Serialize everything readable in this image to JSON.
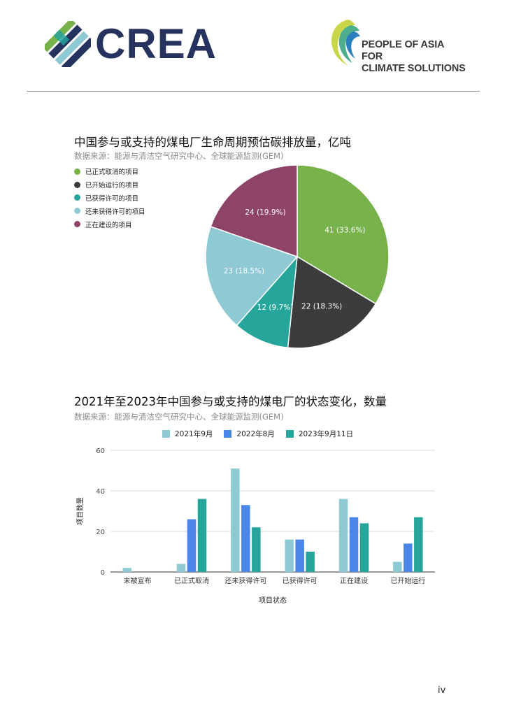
{
  "header": {
    "crea_name": "CREA",
    "paca_line1": "PEOPLE OF ASIA FOR",
    "paca_line2": "CLIMATE SOLUTIONS"
  },
  "colors": {
    "green": "#77b24a",
    "dark": "#3c3c3c",
    "teal": "#26a59a",
    "light_blue": "#8fc9d3",
    "plum": "#8e4468",
    "blue": "#4a86e8",
    "navy": "#26335f"
  },
  "chart_data": [
    {
      "type": "pie",
      "title": "中国参与或支持的煤电厂生命周期预估碳排放量，亿吨",
      "subtitle": "数据来源：能源与清洁空气研究中心、全球能源监测(GEM)",
      "legend_position": "top-left",
      "slices": [
        {
          "label": "已正式取消的项目",
          "value": 41,
          "percent": "33.6%",
          "data_label": "41 (33.6%)",
          "color": "#77b24a"
        },
        {
          "label": "已开始运行的项目",
          "value": 22,
          "percent": "18.3%",
          "data_label": "22 (18.3%)",
          "color": "#3c3c3c"
        },
        {
          "label": "已获得许可的项目",
          "value": 12,
          "percent": "9.7%",
          "data_label": "12 (9.7%)",
          "color": "#26a59a"
        },
        {
          "label": "还未获得许可的项目",
          "value": 23,
          "percent": "18.5%",
          "data_label": "23 (18.5%)",
          "color": "#8fc9d3"
        },
        {
          "label": "正在建设的项目",
          "value": 24,
          "percent": "19.9%",
          "data_label": "24 (19.9%)",
          "color": "#8e4468"
        }
      ]
    },
    {
      "type": "bar",
      "title": "2021年至2023年中国参与或支持的煤电厂的状态变化，数量",
      "subtitle": "数据来源：能源与清洁空气研究中心、全球能源监测(GEM)",
      "xlabel": "项目状态",
      "ylabel": "项目数量",
      "ylim": [
        0,
        60
      ],
      "yticks": [
        0,
        20,
        40,
        60
      ],
      "grid": true,
      "legend_position": "top",
      "categories": [
        "未被宣布",
        "已正式取消",
        "还未获得许可",
        "已获得许可",
        "正在建设",
        "已开始运行"
      ],
      "series": [
        {
          "name": "2021年9月",
          "color": "#8fc9d3",
          "values": [
            2,
            4,
            51,
            16,
            36,
            5
          ]
        },
        {
          "name": "2022年8月",
          "color": "#4a86e8",
          "values": [
            0,
            26,
            33,
            16,
            27,
            14
          ]
        },
        {
          "name": "2023年9月11日",
          "color": "#26a59a",
          "values": [
            0,
            36,
            22,
            10,
            24,
            27
          ]
        }
      ]
    }
  ],
  "page_number": "iv"
}
